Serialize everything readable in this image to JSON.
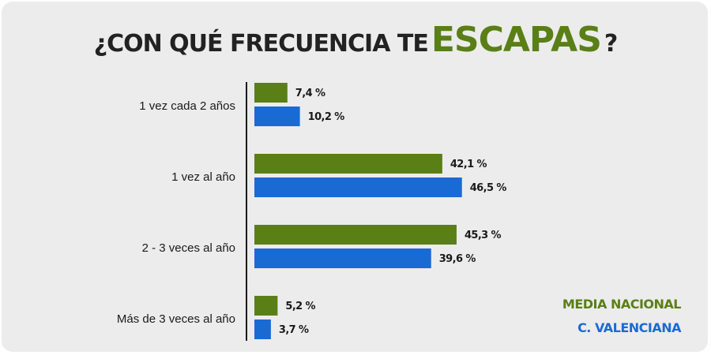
{
  "title": {
    "prefix": "¿CON QUÉ FRECUENCIA TE",
    "highlight": "ESCAPAS",
    "suffix": "?"
  },
  "colors": {
    "nacional": "#5a7f16",
    "valenciana": "#1a6ad4",
    "axis": "#1a1a1a"
  },
  "chart_data": {
    "type": "bar",
    "orientation": "horizontal",
    "title": "¿CON QUÉ FRECUENCIA TE ESCAPAS?",
    "categories": [
      "1 vez cada 2 años",
      "1 vez al año",
      "2 - 3 veces al año",
      "Más de 3 veces al año"
    ],
    "series": [
      {
        "name": "MEDIA NACIONAL",
        "values": [
          7.4,
          42.1,
          45.3,
          5.2
        ],
        "labels": [
          "7,4 %",
          "42,1 %",
          "45,3 %",
          "5,2 %"
        ]
      },
      {
        "name": "C. VALENCIANA",
        "values": [
          10.2,
          46.5,
          39.6,
          3.7
        ],
        "labels": [
          "10,2 %",
          "46,5 %",
          "39,6 %",
          "3,7 %"
        ]
      }
    ],
    "xlim": [
      0,
      50
    ],
    "grid": false,
    "legend_position": "bottom-right"
  }
}
